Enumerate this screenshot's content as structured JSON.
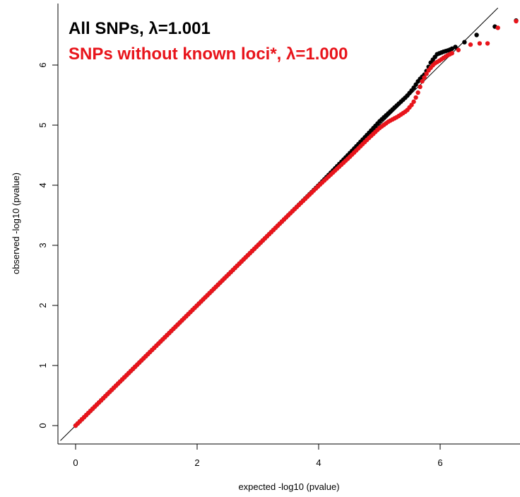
{
  "chart_data": {
    "type": "scatter",
    "title": "",
    "xlabel": "expected -log10 (pvalue)",
    "ylabel": "observed -log10 (pvalue)",
    "xlim": [
      -0.25,
      7.5
    ],
    "ylim": [
      -0.25,
      6.95
    ],
    "x_ticks": [
      "0",
      "2",
      "4",
      "6"
    ],
    "y_ticks": [
      "0",
      "1",
      "2",
      "3",
      "4",
      "5",
      "6"
    ],
    "legend_position": "top-left",
    "reference_line": "y = x",
    "series": [
      {
        "name": "All SNPs, λ=1.001",
        "color": "#000000",
        "points": [
          [
            0,
            0
          ],
          [
            0.5,
            0.5
          ],
          [
            1.0,
            1.0
          ],
          [
            1.5,
            1.5
          ],
          [
            2.0,
            2.0
          ],
          [
            2.5,
            2.5
          ],
          [
            3.0,
            3.0
          ],
          [
            3.5,
            3.5
          ],
          [
            4.0,
            4.0
          ],
          [
            4.5,
            4.52
          ],
          [
            4.8,
            4.84
          ],
          [
            5.0,
            5.06
          ],
          [
            5.15,
            5.2
          ],
          [
            5.3,
            5.34
          ],
          [
            5.45,
            5.48
          ],
          [
            5.55,
            5.6
          ],
          [
            5.65,
            5.75
          ],
          [
            5.75,
            5.85
          ],
          [
            5.85,
            6.05
          ],
          [
            5.95,
            6.18
          ],
          [
            6.05,
            6.22
          ],
          [
            6.15,
            6.25
          ],
          [
            6.25,
            6.3
          ],
          [
            6.4,
            6.38
          ],
          [
            6.6,
            6.5
          ],
          [
            6.9,
            6.64
          ],
          [
            7.25,
            6.74
          ]
        ]
      },
      {
        "name": "SNPs without known loci*, λ=1.000",
        "color": "#e8141b",
        "points": [
          [
            0,
            0
          ],
          [
            0.5,
            0.5
          ],
          [
            1.0,
            1.0
          ],
          [
            1.5,
            1.5
          ],
          [
            2.0,
            2.0
          ],
          [
            2.5,
            2.5
          ],
          [
            3.0,
            3.0
          ],
          [
            3.5,
            3.5
          ],
          [
            4.0,
            3.99
          ],
          [
            4.5,
            4.46
          ],
          [
            4.8,
            4.76
          ],
          [
            5.0,
            4.95
          ],
          [
            5.15,
            5.06
          ],
          [
            5.3,
            5.14
          ],
          [
            5.45,
            5.24
          ],
          [
            5.55,
            5.36
          ],
          [
            5.62,
            5.5
          ],
          [
            5.7,
            5.72
          ],
          [
            5.8,
            5.9
          ],
          [
            5.9,
            6.02
          ],
          [
            6.0,
            6.08
          ],
          [
            6.1,
            6.15
          ],
          [
            6.3,
            6.25
          ],
          [
            6.5,
            6.34
          ],
          [
            6.65,
            6.36
          ],
          [
            6.78,
            6.36
          ],
          [
            6.95,
            6.62
          ],
          [
            7.25,
            6.73
          ]
        ]
      }
    ]
  }
}
